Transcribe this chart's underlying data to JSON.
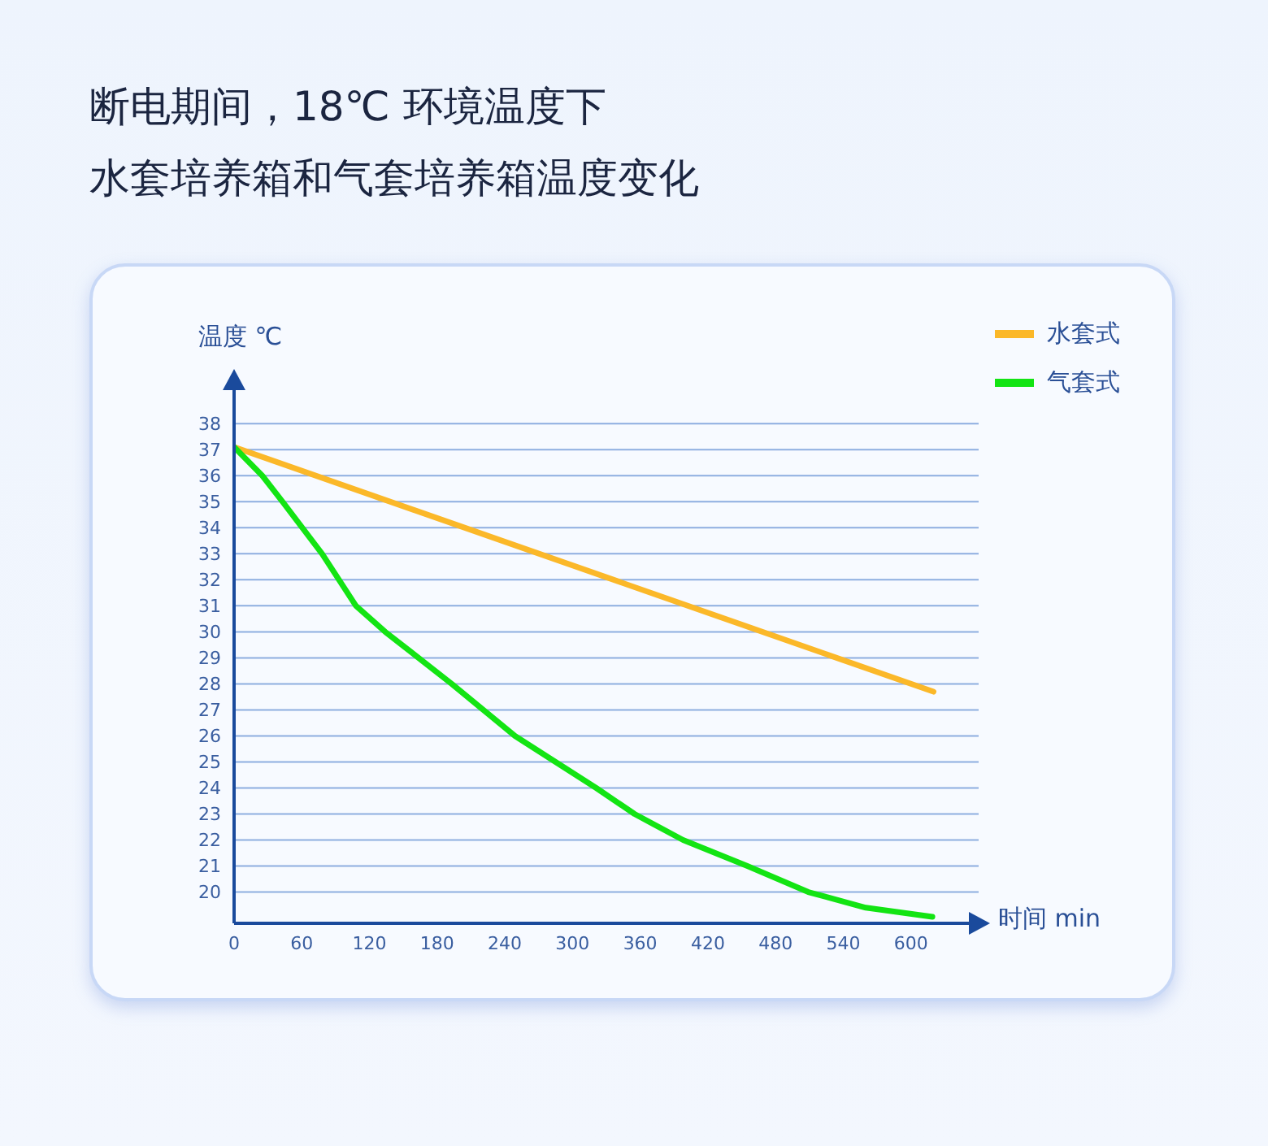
{
  "chart_data": {
    "type": "line",
    "title": "断电期间，18℃ 环境温度下",
    "subtitle": "水套培养箱和气套培养箱温度变化",
    "xlabel": "时间 min",
    "ylabel": "温度 ℃",
    "xlim": [
      0,
      660
    ],
    "xticks": [
      0,
      60,
      120,
      180,
      240,
      300,
      360,
      420,
      480,
      540,
      600
    ],
    "ylim": [
      18.8,
      39.6
    ],
    "yticks": [
      20,
      21,
      22,
      23,
      24,
      25,
      26,
      27,
      28,
      29,
      30,
      31,
      32,
      33,
      34,
      35,
      36,
      37,
      38
    ],
    "grid": "y",
    "legend": "top right",
    "marker": "none",
    "line_style": "solid",
    "series": [
      {
        "name": "水套式",
        "color": "#fbb829",
        "x": [
          0,
          620
        ],
        "values": [
          37.1,
          27.7
        ]
      },
      {
        "name": "气套式",
        "color": "#13e413",
        "x": [
          0,
          25,
          43,
          78,
          108,
          134,
          193,
          249,
          285,
          321,
          355,
          398,
          455,
          509,
          560,
          619
        ],
        "values": [
          37.1,
          36,
          35,
          33,
          31,
          30,
          28,
          26,
          25,
          24,
          23,
          22,
          21,
          20,
          19.4,
          19.05
        ]
      }
    ]
  }
}
